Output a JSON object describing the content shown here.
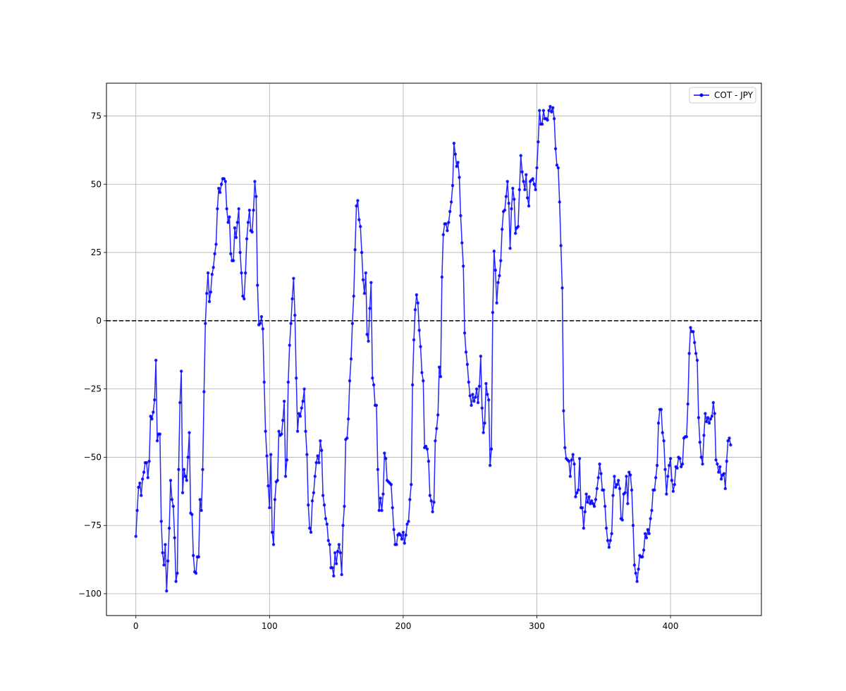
{
  "chart_data": {
    "type": "line",
    "title": "",
    "xlabel": "",
    "ylabel": "",
    "xlim": [
      -22,
      468
    ],
    "ylim": [
      -108,
      87
    ],
    "xticks": [
      0,
      100,
      200,
      300,
      400
    ],
    "yticks": [
      -100,
      -75,
      -50,
      -25,
      0,
      25,
      50,
      75
    ],
    "grid": true,
    "legend": "top-right",
    "reference_line": {
      "y": 0,
      "style": "dashed",
      "color": "#000000"
    },
    "series": [
      {
        "name": "COT - JPY",
        "color": "#0000ff",
        "marker": "circle",
        "x_start": 0,
        "x_step": 1,
        "values": [
          -79,
          -69.5,
          -61,
          -59.5,
          -64,
          -58,
          -55.5,
          -52,
          -52,
          -57.5,
          -51.5,
          -35,
          -36,
          -33.5,
          -29,
          -14.5,
          -44,
          -41.5,
          -41.5,
          -73.5,
          -85,
          -89.5,
          -82,
          -99,
          -88,
          -76,
          -58.5,
          -65.5,
          -68,
          -79.5,
          -95.5,
          -92.5,
          -54.5,
          -30,
          -18.5,
          -63,
          -54.5,
          -57,
          -58.5,
          -50,
          -41,
          -70.5,
          -71,
          -86,
          -92,
          -92.5,
          -86.5,
          -86.5,
          -65.5,
          -69.5,
          -54.5,
          -26,
          -1,
          10,
          17.5,
          7,
          10.5,
          17,
          19.5,
          24.5,
          28,
          41,
          48.5,
          47,
          50,
          52,
          52,
          51,
          41,
          36,
          38,
          24.5,
          22,
          22,
          34,
          30.5,
          36,
          41,
          25,
          17.5,
          9,
          8,
          17.5,
          30,
          36,
          40.5,
          33,
          32.5,
          40.5,
          51,
          45.5,
          13,
          -1.5,
          -1,
          1.5,
          -3,
          -22.5,
          -40.5,
          -49.5,
          -60.5,
          -68.5,
          -49,
          -77.5,
          -82,
          -65.5,
          -59,
          -58.5,
          -40.5,
          -42,
          -41.5,
          -36.5,
          -29.5,
          -57,
          -51,
          -22.5,
          -9,
          -1,
          8,
          15.5,
          2,
          -21,
          -40.5,
          -34,
          -35,
          -32,
          -29.5,
          -25,
          -40.5,
          -49,
          -67.5,
          -76,
          -77.5,
          -66,
          -63,
          -57,
          -52,
          -49.5,
          -52,
          -44,
          -47.5,
          -64,
          -67.5,
          -72.5,
          -74.5,
          -80.5,
          -82,
          -90.5,
          -90.5,
          -93.5,
          -85,
          -89,
          -84.5,
          -82,
          -85,
          -93,
          -75,
          -68,
          -43.5,
          -43,
          -36,
          -22,
          -14,
          -1,
          9,
          26,
          42,
          44,
          37,
          34.5,
          25,
          15,
          10,
          17.5,
          -5,
          -7.5,
          4.5,
          14,
          -21,
          -23.5,
          -31,
          -31,
          -54.5,
          -69.5,
          -65,
          -69.5,
          -63.5,
          -48.5,
          -50.5,
          -58.5,
          -59,
          -59.5,
          -60,
          -68.5,
          -76.5,
          -82,
          -82,
          -78.5,
          -78,
          -78.5,
          -80,
          -77.5,
          -81.5,
          -78.5,
          -74.5,
          -73.5,
          -65.5,
          -60,
          -23.5,
          -7,
          4,
          9.5,
          6.5,
          -3.5,
          -9.5,
          -19,
          -22,
          -46.5,
          -46,
          -47,
          -51.5,
          -64,
          -66,
          -70,
          -66.5,
          -44,
          -39.5,
          -34.5,
          -17,
          -20.5,
          16,
          31.5,
          35.5,
          35.5,
          33,
          36,
          40,
          43.5,
          49.5,
          65,
          61,
          56.5,
          58,
          52.5,
          38.5,
          28.5,
          20,
          -4.5,
          -11.5,
          -16,
          -22.5,
          -27.5,
          -31,
          -27,
          -29.5,
          -28,
          -25,
          -30,
          -24,
          -13,
          -32,
          -41,
          -37.5,
          -23,
          -27,
          -29,
          -53,
          -47,
          3,
          25.5,
          18.5,
          6.5,
          14,
          16.5,
          22,
          33.5,
          40,
          40.5,
          45.5,
          51,
          43,
          26.5,
          41,
          48.5,
          44.5,
          32,
          34,
          34.5,
          48,
          60.5,
          54.5,
          51,
          48,
          53.5,
          45,
          42,
          51,
          51.5,
          52,
          50,
          48,
          56,
          65.5,
          77,
          72,
          72,
          77,
          74,
          74,
          73.5,
          77,
          78.5,
          76.5,
          78,
          74,
          63,
          57,
          56,
          43.5,
          27.5,
          12,
          -33,
          -46.5,
          -50.5,
          -51,
          -51.5,
          -57,
          -51,
          -49,
          -52.5,
          -64.5,
          -63,
          -62,
          -50.5,
          -68.5,
          -68.5,
          -76,
          -70,
          -63.5,
          -66.5,
          -64.5,
          -67,
          -66,
          -67,
          -68,
          -65.5,
          -61.5,
          -57.5,
          -52.5,
          -56,
          -62,
          -62,
          -68,
          -76,
          -80.5,
          -83,
          -80.5,
          -78,
          -64,
          -57,
          -61,
          -60,
          -58.5,
          -61.5,
          -72.5,
          -73,
          -63.5,
          -63,
          -57,
          -67,
          -55.5,
          -56.5,
          -62,
          -75,
          -89.5,
          -92.5,
          -95.5,
          -91,
          -86,
          -86.5,
          -86.5,
          -84,
          -78,
          -79.5,
          -76.5,
          -78,
          -72.5,
          -69.5,
          -62,
          -62,
          -57.5,
          -53,
          -37.5,
          -32.5,
          -32.5,
          -41,
          -44,
          -54.5,
          -63.5,
          -57,
          -53,
          -50.5,
          -58.5,
          -62.5,
          -60,
          -53.5,
          -54,
          -50,
          -50.5,
          -53.5,
          -52.5,
          -43,
          -42.5,
          -42.5,
          -30.5,
          -12,
          -2.5,
          -4,
          -4,
          -8,
          -12,
          -14.5,
          -35.5,
          -44.5,
          -50,
          -52.5,
          -42,
          -34,
          -37,
          -35.5,
          -37.5,
          -36,
          -35,
          -30,
          -34,
          -51,
          -52.5,
          -55.5,
          -53.5,
          -58,
          -56.5,
          -56,
          -61.5,
          -51.5,
          -44,
          -43,
          -45.5
        ]
      }
    ]
  }
}
